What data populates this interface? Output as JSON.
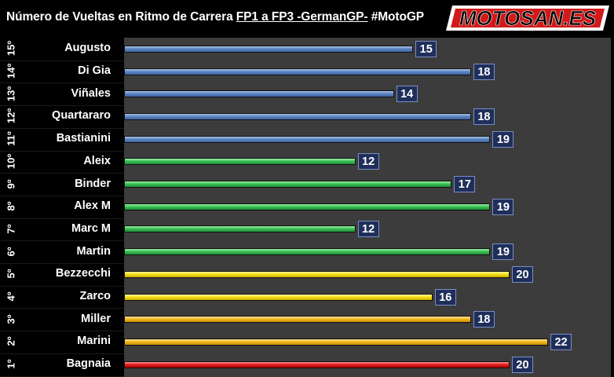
{
  "header": {
    "title_part1": "Número de Vueltas en Ritmo de Carrera ",
    "title_part2": "FP1 a FP3 -GermanGP-",
    "title_part3": " #MotoGP",
    "logo_text": "MOTOSAN.ES"
  },
  "chart_data": {
    "type": "bar",
    "orientation": "horizontal",
    "title": "Número de Vueltas en Ritmo de Carrera FP1 a FP3 -GermanGP- #MotoGP",
    "xlabel": "",
    "ylabel": "",
    "xlim": [
      0,
      25
    ],
    "grid": false,
    "legend": "none",
    "colors": {
      "blue": "#5f86c0",
      "green": "#3cc255",
      "yellow": "#f7e21a",
      "gold": "#f1b81e",
      "red": "#e52020",
      "label_box": "#1f2f5a",
      "plot_bg": "#3c3c3c"
    },
    "rows": [
      {
        "rank": "15º",
        "rider": "Augusto",
        "value": 15,
        "color": "blue"
      },
      {
        "rank": "14º",
        "rider": "Di Gia",
        "value": 18,
        "color": "blue"
      },
      {
        "rank": "13º",
        "rider": "Viñales",
        "value": 14,
        "color": "blue"
      },
      {
        "rank": "12º",
        "rider": "Quartararo",
        "value": 18,
        "color": "blue"
      },
      {
        "rank": "11º",
        "rider": "Bastianini",
        "value": 19,
        "color": "blue"
      },
      {
        "rank": "10º",
        "rider": "Aleix",
        "value": 12,
        "color": "green"
      },
      {
        "rank": "9º",
        "rider": "Binder",
        "value": 17,
        "color": "green"
      },
      {
        "rank": "8º",
        "rider": "Alex M",
        "value": 19,
        "color": "green"
      },
      {
        "rank": "7º",
        "rider": "Marc M",
        "value": 12,
        "color": "green"
      },
      {
        "rank": "6º",
        "rider": "Martin",
        "value": 19,
        "color": "green"
      },
      {
        "rank": "5º",
        "rider": "Bezzecchi",
        "value": 20,
        "color": "yellow"
      },
      {
        "rank": "4º",
        "rider": "Zarco",
        "value": 16,
        "color": "yellow"
      },
      {
        "rank": "3º",
        "rider": "Miller",
        "value": 18,
        "color": "gold"
      },
      {
        "rank": "2º",
        "rider": "Marini",
        "value": 22,
        "color": "gold"
      },
      {
        "rank": "1º",
        "rider": "Bagnaia",
        "value": 20,
        "color": "red"
      }
    ]
  }
}
